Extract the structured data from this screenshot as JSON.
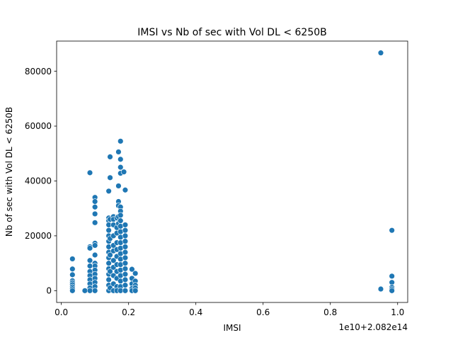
{
  "chart_data": {
    "type": "scatter",
    "title": "IMSI vs Nb of sec with Vol DL < 6250B",
    "xlabel": "IMSI",
    "ylabel": "Nb of sec with Vol DL < 6250B",
    "x_offset_label": "1e10+2.082e14",
    "xlim": [
      -0.014,
      1.03
    ],
    "ylim": [
      -4300,
      91000
    ],
    "xticks": [
      0.0,
      0.2,
      0.4,
      0.6,
      0.8,
      1.0
    ],
    "xtick_labels": [
      "0.0",
      "0.2",
      "0.4",
      "0.6",
      "0.8",
      "1.0"
    ],
    "yticks": [
      0,
      20000,
      40000,
      60000,
      80000
    ],
    "ytick_labels": [
      "0",
      "20000",
      "40000",
      "60000",
      "80000"
    ],
    "grid": false,
    "marker_color": "#1f77b4",
    "points": [
      {
        "x": 0.033,
        "y": 11600
      },
      {
        "x": 0.033,
        "y": 7900
      },
      {
        "x": 0.033,
        "y": 5800
      },
      {
        "x": 0.033,
        "y": 3600
      },
      {
        "x": 0.033,
        "y": 2900
      },
      {
        "x": 0.033,
        "y": 2200
      },
      {
        "x": 0.033,
        "y": 1400
      },
      {
        "x": 0.033,
        "y": 700
      },
      {
        "x": 0.033,
        "y": 0
      },
      {
        "x": 0.07,
        "y": 0
      },
      {
        "x": 0.085,
        "y": 43000
      },
      {
        "x": 0.085,
        "y": 16000
      },
      {
        "x": 0.085,
        "y": 15500
      },
      {
        "x": 0.085,
        "y": 11000
      },
      {
        "x": 0.085,
        "y": 9000
      },
      {
        "x": 0.085,
        "y": 7000
      },
      {
        "x": 0.085,
        "y": 5500
      },
      {
        "x": 0.085,
        "y": 4000
      },
      {
        "x": 0.085,
        "y": 2500
      },
      {
        "x": 0.085,
        "y": 1000
      },
      {
        "x": 0.085,
        "y": 0
      },
      {
        "x": 0.1,
        "y": 34000
      },
      {
        "x": 0.1,
        "y": 32500
      },
      {
        "x": 0.1,
        "y": 30500
      },
      {
        "x": 0.1,
        "y": 28000
      },
      {
        "x": 0.1,
        "y": 24800
      },
      {
        "x": 0.1,
        "y": 17300
      },
      {
        "x": 0.1,
        "y": 16500
      },
      {
        "x": 0.1,
        "y": 13000
      },
      {
        "x": 0.1,
        "y": 10000
      },
      {
        "x": 0.1,
        "y": 9000
      },
      {
        "x": 0.1,
        "y": 7500
      },
      {
        "x": 0.1,
        "y": 6000
      },
      {
        "x": 0.1,
        "y": 4500
      },
      {
        "x": 0.1,
        "y": 3000
      },
      {
        "x": 0.1,
        "y": 1500
      },
      {
        "x": 0.1,
        "y": 0
      },
      {
        "x": 0.141,
        "y": 36300
      },
      {
        "x": 0.141,
        "y": 26500
      },
      {
        "x": 0.141,
        "y": 25500
      },
      {
        "x": 0.141,
        "y": 24000
      },
      {
        "x": 0.141,
        "y": 22000
      },
      {
        "x": 0.141,
        "y": 20000
      },
      {
        "x": 0.141,
        "y": 18000
      },
      {
        "x": 0.141,
        "y": 16000
      },
      {
        "x": 0.141,
        "y": 14000
      },
      {
        "x": 0.141,
        "y": 12000
      },
      {
        "x": 0.141,
        "y": 10000
      },
      {
        "x": 0.141,
        "y": 8000
      },
      {
        "x": 0.141,
        "y": 6000
      },
      {
        "x": 0.141,
        "y": 4000
      },
      {
        "x": 0.141,
        "y": 2000
      },
      {
        "x": 0.141,
        "y": 0
      },
      {
        "x": 0.145,
        "y": 48800
      },
      {
        "x": 0.145,
        "y": 41200
      },
      {
        "x": 0.145,
        "y": 26000
      },
      {
        "x": 0.145,
        "y": 19000
      },
      {
        "x": 0.145,
        "y": 13000
      },
      {
        "x": 0.145,
        "y": 7000
      },
      {
        "x": 0.145,
        "y": 1000
      },
      {
        "x": 0.155,
        "y": 27000
      },
      {
        "x": 0.155,
        "y": 26000
      },
      {
        "x": 0.155,
        "y": 24000
      },
      {
        "x": 0.155,
        "y": 20000
      },
      {
        "x": 0.155,
        "y": 16500
      },
      {
        "x": 0.155,
        "y": 14500
      },
      {
        "x": 0.155,
        "y": 11000
      },
      {
        "x": 0.155,
        "y": 8500
      },
      {
        "x": 0.155,
        "y": 5500
      },
      {
        "x": 0.155,
        "y": 2500
      },
      {
        "x": 0.155,
        "y": 0
      },
      {
        "x": 0.165,
        "y": 26500
      },
      {
        "x": 0.165,
        "y": 23000
      },
      {
        "x": 0.165,
        "y": 21000
      },
      {
        "x": 0.165,
        "y": 17500
      },
      {
        "x": 0.165,
        "y": 15000
      },
      {
        "x": 0.165,
        "y": 12500
      },
      {
        "x": 0.165,
        "y": 9500
      },
      {
        "x": 0.165,
        "y": 7000
      },
      {
        "x": 0.165,
        "y": 4500
      },
      {
        "x": 0.165,
        "y": 1500
      },
      {
        "x": 0.165,
        "y": 0
      },
      {
        "x": 0.17,
        "y": 50600
      },
      {
        "x": 0.17,
        "y": 38200
      },
      {
        "x": 0.17,
        "y": 32500
      },
      {
        "x": 0.17,
        "y": 31000
      },
      {
        "x": 0.17,
        "y": 27000
      },
      {
        "x": 0.17,
        "y": 24500
      },
      {
        "x": 0.176,
        "y": 54500
      },
      {
        "x": 0.176,
        "y": 47900
      },
      {
        "x": 0.176,
        "y": 45000
      },
      {
        "x": 0.176,
        "y": 42800
      },
      {
        "x": 0.176,
        "y": 30500
      },
      {
        "x": 0.176,
        "y": 29000
      },
      {
        "x": 0.176,
        "y": 27500
      },
      {
        "x": 0.176,
        "y": 25500
      },
      {
        "x": 0.176,
        "y": 23500
      },
      {
        "x": 0.176,
        "y": 21500
      },
      {
        "x": 0.176,
        "y": 19500
      },
      {
        "x": 0.176,
        "y": 17500
      },
      {
        "x": 0.176,
        "y": 15500
      },
      {
        "x": 0.176,
        "y": 13500
      },
      {
        "x": 0.176,
        "y": 11500
      },
      {
        "x": 0.176,
        "y": 9500
      },
      {
        "x": 0.176,
        "y": 7500
      },
      {
        "x": 0.176,
        "y": 5500
      },
      {
        "x": 0.176,
        "y": 3500
      },
      {
        "x": 0.176,
        "y": 1500
      },
      {
        "x": 0.176,
        "y": 0
      },
      {
        "x": 0.186,
        "y": 43300
      },
      {
        "x": 0.19,
        "y": 36700
      },
      {
        "x": 0.19,
        "y": 24000
      },
      {
        "x": 0.19,
        "y": 22000
      },
      {
        "x": 0.19,
        "y": 20000
      },
      {
        "x": 0.19,
        "y": 18000
      },
      {
        "x": 0.19,
        "y": 16000
      },
      {
        "x": 0.19,
        "y": 14000
      },
      {
        "x": 0.19,
        "y": 12000
      },
      {
        "x": 0.19,
        "y": 10000
      },
      {
        "x": 0.19,
        "y": 8000
      },
      {
        "x": 0.19,
        "y": 6000
      },
      {
        "x": 0.19,
        "y": 4000
      },
      {
        "x": 0.19,
        "y": 2000
      },
      {
        "x": 0.19,
        "y": 0
      },
      {
        "x": 0.21,
        "y": 7800
      },
      {
        "x": 0.21,
        "y": 4500
      },
      {
        "x": 0.21,
        "y": 2500
      },
      {
        "x": 0.21,
        "y": 800
      },
      {
        "x": 0.21,
        "y": 0
      },
      {
        "x": 0.22,
        "y": 6300
      },
      {
        "x": 0.22,
        "y": 3500
      },
      {
        "x": 0.22,
        "y": 2000
      },
      {
        "x": 0.22,
        "y": 1000
      },
      {
        "x": 0.22,
        "y": 0
      },
      {
        "x": 0.95,
        "y": 86700
      },
      {
        "x": 0.95,
        "y": 600
      },
      {
        "x": 0.983,
        "y": 22000
      },
      {
        "x": 0.983,
        "y": 5300
      },
      {
        "x": 0.983,
        "y": 3000
      },
      {
        "x": 0.983,
        "y": 1200
      },
      {
        "x": 0.983,
        "y": 600
      },
      {
        "x": 0.983,
        "y": 0
      }
    ]
  }
}
